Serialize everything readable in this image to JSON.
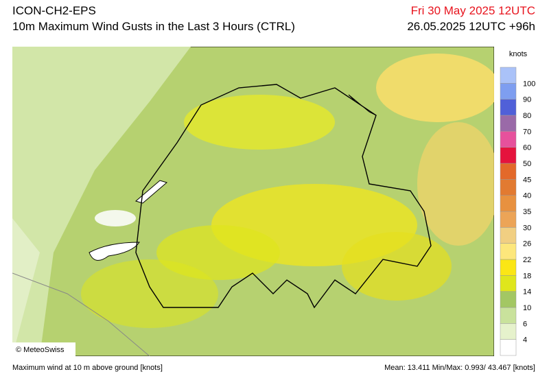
{
  "header": {
    "model": "ICON-CH2-EPS",
    "product": "10m Maximum Wind Gusts in the Last 3 Hours (CTRL)",
    "valid_time": "Fri 30 May 2025 12UTC",
    "run": "26.05.2025 12UTC +96h"
  },
  "map": {
    "copyright": "© MeteoSwiss"
  },
  "legend": {
    "unit": "knots",
    "ticks": [
      4,
      6,
      10,
      14,
      18,
      22,
      26,
      30,
      35,
      40,
      45,
      50,
      60,
      70,
      80,
      90,
      100
    ],
    "colors": [
      "#ffffff",
      "#e6f2cc",
      "#c9e29c",
      "#a3c763",
      "#dfe61c",
      "#fbe615",
      "#fde77c",
      "#f1cf82",
      "#eca457",
      "#e8913f",
      "#e27a31",
      "#e3692a",
      "#e5133d",
      "#e6519c",
      "#9a6aa8",
      "#5060d8",
      "#7e9ef0",
      "#aac2f8"
    ]
  },
  "footer": {
    "description": "Maximum wind at 10 m above ground [knots]",
    "stats": "Mean:  13.411 Min/Max:   0.993/ 43.467 [knots]"
  }
}
